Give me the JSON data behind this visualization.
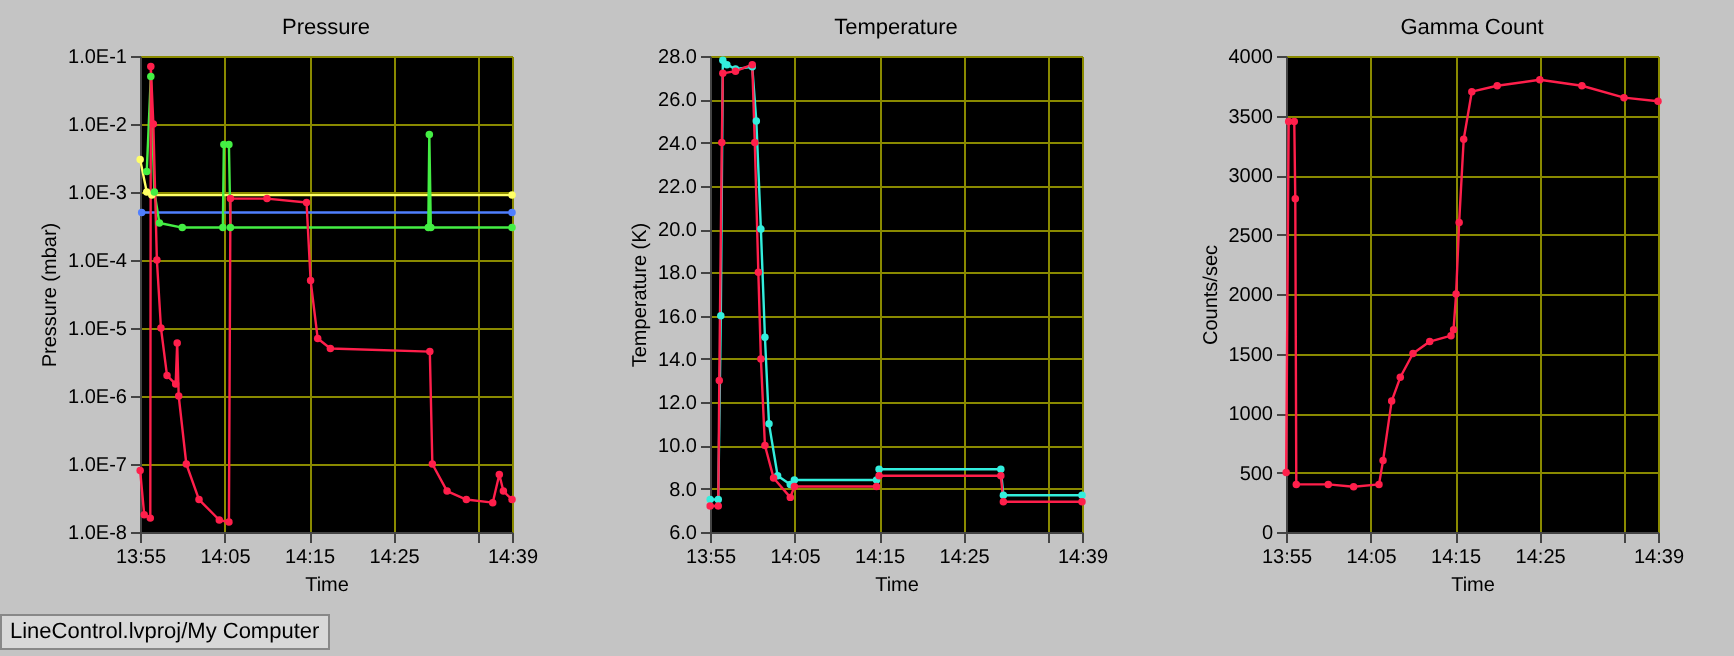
{
  "chart_data": [
    {
      "type": "line",
      "title": "Pressure",
      "xlabel": "Time",
      "ylabel": "Pressure (mbar)",
      "log": "y",
      "grid": true,
      "marker": "circle",
      "line_style": "solid",
      "xlim": [
        13.9167,
        14.65
      ],
      "xticks": [
        {
          "value": 13.9167,
          "label": "13:55"
        },
        {
          "value": 14.0833,
          "label": "14:05"
        },
        {
          "value": 14.25,
          "label": "14:15"
        },
        {
          "value": 14.4167,
          "label": "14:25"
        },
        {
          "value": 14.5833,
          "label": null
        },
        {
          "value": 14.65,
          "label": "14:39"
        }
      ],
      "ylim": [
        1e-08,
        0.1
      ],
      "yticks": [
        {
          "value": 1e-08,
          "label": "1.0E-8"
        },
        {
          "value": 1e-07,
          "label": "1.0E-7"
        },
        {
          "value": 1e-06,
          "label": "1.0E-6"
        },
        {
          "value": 1e-05,
          "label": "1.0E-5"
        },
        {
          "value": 0.0001,
          "label": "1.0E-4"
        },
        {
          "value": 0.001,
          "label": "1.0E-3"
        },
        {
          "value": 0.01,
          "label": "1.0E-2"
        },
        {
          "value": 0.1,
          "label": "1.0E-1"
        }
      ],
      "annotations": [
        "LineControl.lvproj/My Computer"
      ],
      "series": [
        {
          "color": "#ffff66",
          "x": [
            13.917,
            13.93,
            13.94,
            14.65
          ],
          "values": [
            0.003,
            0.001,
            0.0009,
            0.0009
          ]
        },
        {
          "color": "#4f7fff",
          "x": [
            13.92,
            14.65
          ],
          "values": [
            0.0005,
            0.0005
          ]
        },
        {
          "color": "#44ee44",
          "x": [
            13.93,
            13.938,
            13.945,
            13.955,
            14.0,
            14.08,
            14.082,
            14.092,
            14.095,
            14.485,
            14.487,
            14.49,
            14.65
          ],
          "values": [
            0.002,
            0.05,
            0.001,
            0.00035,
            0.0003,
            0.0003,
            0.005,
            0.005,
            0.0003,
            0.0003,
            0.007,
            0.0003,
            0.0003
          ]
        },
        {
          "color": "#ff1f4b",
          "x": [
            13.917,
            13.925,
            13.937,
            13.938,
            13.943,
            13.95,
            13.958,
            13.97,
            13.987,
            13.99,
            13.993,
            14.008,
            14.033,
            14.073,
            14.092,
            14.095,
            14.167,
            14.245,
            14.253,
            14.267,
            14.292,
            14.488,
            14.493,
            14.522,
            14.56,
            14.612,
            14.625,
            14.633,
            14.65
          ],
          "values": [
            8e-08,
            1.8e-08,
            1.6e-08,
            0.07,
            0.01,
            0.0001,
            1e-05,
            2e-06,
            1.5e-06,
            6e-06,
            1e-06,
            1e-07,
            3e-08,
            1.5e-08,
            1.4e-08,
            0.0008,
            0.0008,
            0.0007,
            5e-05,
            7e-06,
            5e-06,
            4.5e-06,
            1e-07,
            4e-08,
            3e-08,
            2.7e-08,
            7e-08,
            4e-08,
            3e-08
          ]
        }
      ]
    },
    {
      "type": "line",
      "title": "Temperature",
      "xlabel": "Time",
      "ylabel": "Temperature (K)",
      "grid": true,
      "marker": "circle",
      "line_style": "solid",
      "xlim": [
        13.9167,
        14.65
      ],
      "xticks": [
        {
          "value": 13.9167,
          "label": "13:55"
        },
        {
          "value": 14.0833,
          "label": "14:05"
        },
        {
          "value": 14.25,
          "label": "14:15"
        },
        {
          "value": 14.4167,
          "label": "14:25"
        },
        {
          "value": 14.5833,
          "label": null
        },
        {
          "value": 14.65,
          "label": "14:39"
        }
      ],
      "ylim": [
        6,
        28
      ],
      "yticks": [
        {
          "value": 6,
          "label": "6.0"
        },
        {
          "value": 8,
          "label": "8.0"
        },
        {
          "value": 10,
          "label": "10.0"
        },
        {
          "value": 12,
          "label": "12.0"
        },
        {
          "value": 14,
          "label": "14.0"
        },
        {
          "value": 16,
          "label": "16.0"
        },
        {
          "value": 18,
          "label": "18.0"
        },
        {
          "value": 20,
          "label": "20.0"
        },
        {
          "value": 22,
          "label": "22.0"
        },
        {
          "value": 24,
          "label": "24.0"
        },
        {
          "value": 26,
          "label": "26.0"
        },
        {
          "value": 28,
          "label": "28.0"
        }
      ],
      "series": [
        {
          "color": "#33eedd",
          "x": [
            13.917,
            13.933,
            13.938,
            13.942,
            13.95,
            13.967,
            14.0,
            14.008,
            14.017,
            14.025,
            14.033,
            14.05,
            14.075,
            14.083,
            14.245,
            14.25,
            14.49,
            14.495,
            14.65
          ],
          "values": [
            7.5,
            7.5,
            16,
            27.8,
            27.6,
            27.4,
            27.5,
            25,
            20,
            15,
            11,
            8.6,
            8.2,
            8.4,
            8.4,
            8.9,
            8.9,
            7.7,
            7.7
          ]
        },
        {
          "color": "#ff1f4b",
          "x": [
            13.917,
            13.933,
            13.935,
            13.94,
            13.942,
            13.967,
            14.0,
            14.005,
            14.012,
            14.017,
            14.025,
            14.042,
            14.075,
            14.083,
            14.245,
            14.25,
            14.49,
            14.495,
            14.65
          ],
          "values": [
            7.2,
            7.2,
            13,
            24,
            27.2,
            27.3,
            27.6,
            24,
            18,
            14,
            10,
            8.5,
            7.6,
            8.1,
            8.1,
            8.6,
            8.6,
            7.4,
            7.4
          ]
        }
      ]
    },
    {
      "type": "line",
      "title": "Gamma Count",
      "xlabel": "Time",
      "ylabel": "Counts/sec",
      "grid": true,
      "marker": "circle",
      "line_style": "solid",
      "xlim": [
        13.9167,
        14.65
      ],
      "xticks": [
        {
          "value": 13.9167,
          "label": "13:55"
        },
        {
          "value": 14.0833,
          "label": "14:05"
        },
        {
          "value": 14.25,
          "label": "14:15"
        },
        {
          "value": 14.4167,
          "label": "14:25"
        },
        {
          "value": 14.5833,
          "label": null
        },
        {
          "value": 14.65,
          "label": "14:39"
        }
      ],
      "ylim": [
        0,
        4000
      ],
      "yticks": [
        0,
        500,
        1000,
        1500,
        2000,
        2500,
        3000,
        3500,
        4000
      ],
      "series": [
        {
          "color": "#ff1f4b",
          "x": [
            13.917,
            13.922,
            13.933,
            13.935,
            13.937,
            14.0,
            14.05,
            14.1,
            14.108,
            14.125,
            14.142,
            14.167,
            14.2,
            14.242,
            14.247,
            14.252,
            14.258,
            14.267,
            14.283,
            14.333,
            14.417,
            14.5,
            14.583,
            14.65
          ],
          "values": [
            500,
            3450,
            3450,
            2800,
            400,
            400,
            380,
            400,
            600,
            1100,
            1300,
            1500,
            1600,
            1650,
            1700,
            2000,
            2600,
            3300,
            3700,
            3750,
            3800,
            3750,
            3650,
            3620
          ]
        }
      ]
    }
  ]
}
